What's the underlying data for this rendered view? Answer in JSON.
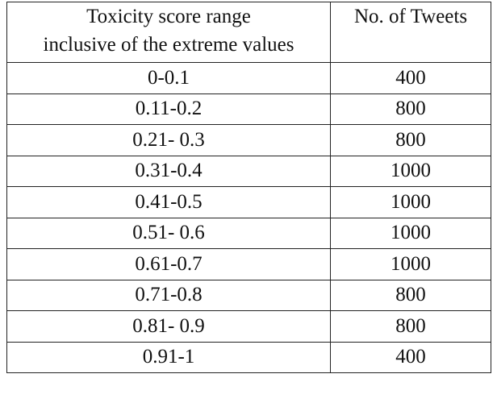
{
  "table": {
    "header": [
      [
        "Toxicity score range",
        "inclusive of the extreme values"
      ],
      [
        "No. of Tweets"
      ]
    ],
    "rows": [
      [
        "0-0.1",
        400
      ],
      [
        "0.11-0.2",
        800
      ],
      [
        "0.21- 0.3",
        800
      ],
      [
        "0.31-0.4",
        1000
      ],
      [
        "0.41-0.5",
        1000
      ],
      [
        "0.51- 0.6",
        1000
      ],
      [
        "0.61-0.7",
        1000
      ],
      [
        "0.71-0.8",
        800
      ],
      [
        "0.81- 0.9",
        800
      ],
      [
        "0.91-1",
        400
      ]
    ]
  }
}
